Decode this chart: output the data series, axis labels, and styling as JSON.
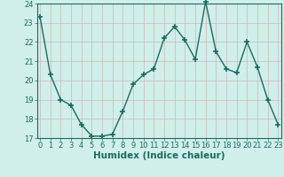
{
  "x": [
    0,
    1,
    2,
    3,
    4,
    5,
    6,
    7,
    8,
    9,
    10,
    11,
    12,
    13,
    14,
    15,
    16,
    17,
    18,
    19,
    20,
    21,
    22,
    23
  ],
  "y": [
    23.3,
    20.3,
    19.0,
    18.7,
    17.7,
    17.1,
    17.1,
    17.2,
    18.4,
    19.8,
    20.3,
    20.6,
    22.2,
    22.8,
    22.1,
    21.1,
    24.1,
    21.5,
    20.6,
    20.4,
    22.0,
    20.7,
    19.0,
    17.7
  ],
  "ylim": [
    17,
    24
  ],
  "xlim": [
    -0.3,
    23.3
  ],
  "yticks": [
    17,
    18,
    19,
    20,
    21,
    22,
    23,
    24
  ],
  "xticks": [
    0,
    1,
    2,
    3,
    4,
    5,
    6,
    7,
    8,
    9,
    10,
    11,
    12,
    13,
    14,
    15,
    16,
    17,
    18,
    19,
    20,
    21,
    22,
    23
  ],
  "xlabel": "Humidex (Indice chaleur)",
  "line_color": "#1a6b5e",
  "bg_color": "#d0eeea",
  "grid_color": "#c8b8b8",
  "axis_color": "#1a6b5e",
  "label_color": "#1a6b5e",
  "marker": "+",
  "marker_size": 4,
  "line_width": 1.0,
  "xlabel_fontsize": 7.5,
  "tick_fontsize": 6.0
}
